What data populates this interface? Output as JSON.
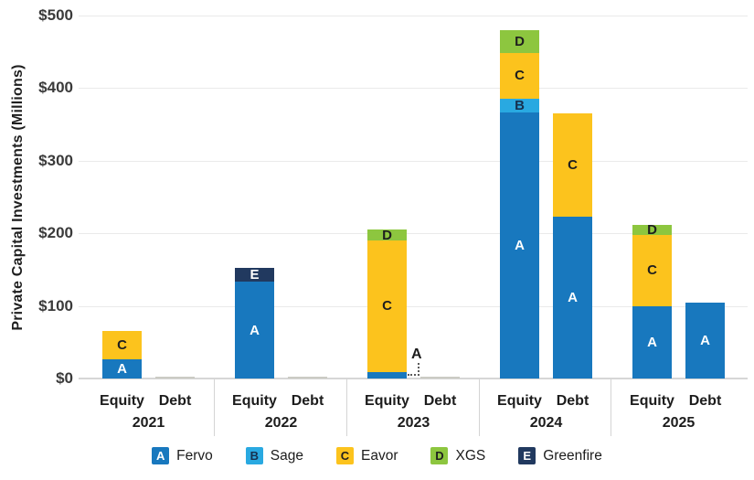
{
  "chart_data": {
    "type": "bar",
    "stacked": true,
    "title": "",
    "ylabel": "Private Capital Investments (Millions)",
    "xlabel": "",
    "unit": "USD millions",
    "ylim": [
      0,
      500
    ],
    "grid": "horizontal",
    "y_ticks": [
      {
        "label": "$0",
        "value": 0
      },
      {
        "label": "$100",
        "value": 100
      },
      {
        "label": "$200",
        "value": 200
      },
      {
        "label": "$300",
        "value": 300
      },
      {
        "label": "$400",
        "value": 400
      },
      {
        "label": "$500",
        "value": 500
      }
    ],
    "companies": {
      "fervo": {
        "letter": "A",
        "name": "Fervo",
        "color": "#1878BE",
        "letter_color": "#FFFFFF"
      },
      "sage": {
        "letter": "B",
        "name": "Sage",
        "color": "#29A9E1",
        "letter_color": "#16304E"
      },
      "eavor": {
        "letter": "C",
        "name": "Eavor",
        "color": "#FCC31D",
        "letter_color": "#1E1E1E"
      },
      "xgs": {
        "letter": "D",
        "name": "XGS",
        "color": "#8DC63F",
        "letter_color": "#1E1E1E"
      },
      "greenfire": {
        "letter": "E",
        "name": "Greenfire",
        "color": "#21395F",
        "letter_color": "#FFFFFF"
      },
      "other": {
        "letter": "",
        "name": "",
        "color": "#CBCBC4",
        "letter_color": "#1E1E1E"
      }
    },
    "legend_order": [
      "fervo",
      "sage",
      "eavor",
      "xgs",
      "greenfire"
    ],
    "legend_position": "bottom",
    "groups": [
      {
        "year": "2021",
        "bars": [
          {
            "label": "Equity",
            "segments": [
              {
                "company": "fervo",
                "value": 26
              },
              {
                "company": "eavor",
                "value": 40
              }
            ]
          },
          {
            "label": "Debt",
            "segments": [
              {
                "company": "other",
                "value": 2
              }
            ]
          }
        ]
      },
      {
        "year": "2022",
        "bars": [
          {
            "label": "Equity",
            "segments": [
              {
                "company": "fervo",
                "value": 133
              },
              {
                "company": "greenfire",
                "value": 19
              }
            ]
          },
          {
            "label": "Debt",
            "segments": [
              {
                "company": "other",
                "value": 2
              }
            ]
          }
        ]
      },
      {
        "year": "2023",
        "bars": [
          {
            "label": "Equity",
            "segments": [
              {
                "company": "fervo",
                "value": 9
              },
              {
                "company": "eavor",
                "value": 181
              },
              {
                "company": "xgs",
                "value": 15
              }
            ]
          },
          {
            "label": "Debt",
            "segments": [
              {
                "company": "other",
                "value": 2
              }
            ]
          }
        ]
      },
      {
        "year": "2024",
        "bars": [
          {
            "label": "Equity",
            "segments": [
              {
                "company": "fervo",
                "value": 367
              },
              {
                "company": "sage",
                "value": 19
              },
              {
                "company": "eavor",
                "value": 63
              },
              {
                "company": "xgs",
                "value": 31
              }
            ]
          },
          {
            "label": "Debt",
            "segments": [
              {
                "company": "fervo",
                "value": 223
              },
              {
                "company": "eavor",
                "value": 142
              }
            ]
          }
        ]
      },
      {
        "year": "2025",
        "bars": [
          {
            "label": "Equity",
            "segments": [
              {
                "company": "fervo",
                "value": 100
              },
              {
                "company": "eavor",
                "value": 98
              },
              {
                "company": "xgs",
                "value": 14
              }
            ]
          },
          {
            "label": "Debt",
            "segments": [
              {
                "company": "fervo",
                "value": 105
              }
            ]
          }
        ]
      }
    ],
    "annotations": [
      {
        "text": "A",
        "group": "2023",
        "bar": "Equity",
        "company": "fervo",
        "style": "letter-with-dotted-leader"
      }
    ]
  }
}
